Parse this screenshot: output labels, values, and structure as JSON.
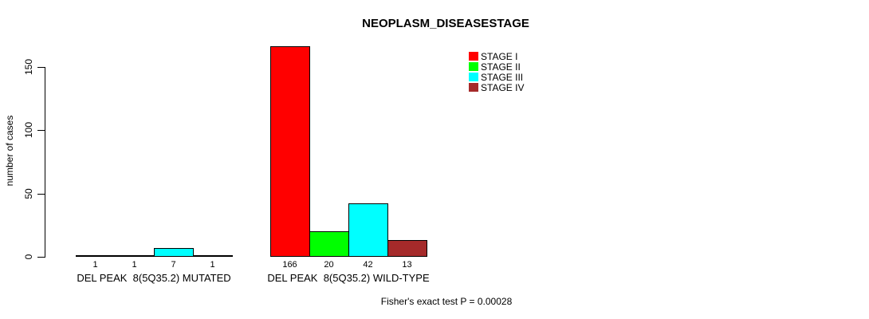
{
  "chart_data": {
    "type": "bar",
    "title": "NEOPLASM_DISEASESTAGE",
    "ylabel": "number of cases",
    "xlabel": "",
    "ylim": [
      0,
      166
    ],
    "y_ticks": [
      0,
      50,
      100,
      150
    ],
    "grid": false,
    "legend_position": "top-right-inside",
    "bar_outline_color": "#000000",
    "categories": [
      "DEL PEAK  8(5Q35.2) MUTATED",
      "DEL PEAK  8(5Q35.2) WILD-TYPE"
    ],
    "series": [
      {
        "name": "STAGE I",
        "color": "#FF0000",
        "values": [
          1,
          166
        ]
      },
      {
        "name": "STAGE II",
        "color": "#00FF00",
        "values": [
          1,
          20
        ]
      },
      {
        "name": "STAGE III",
        "color": "#00FFFF",
        "values": [
          7,
          42
        ]
      },
      {
        "name": "STAGE IV",
        "color": "#A52A2A",
        "values": [
          1,
          13
        ]
      }
    ],
    "bar_value_labels": [
      [
        1,
        1,
        7,
        1
      ],
      [
        166,
        20,
        42,
        13
      ]
    ],
    "annotation": "Fisher's exact test P = 0.00028"
  }
}
